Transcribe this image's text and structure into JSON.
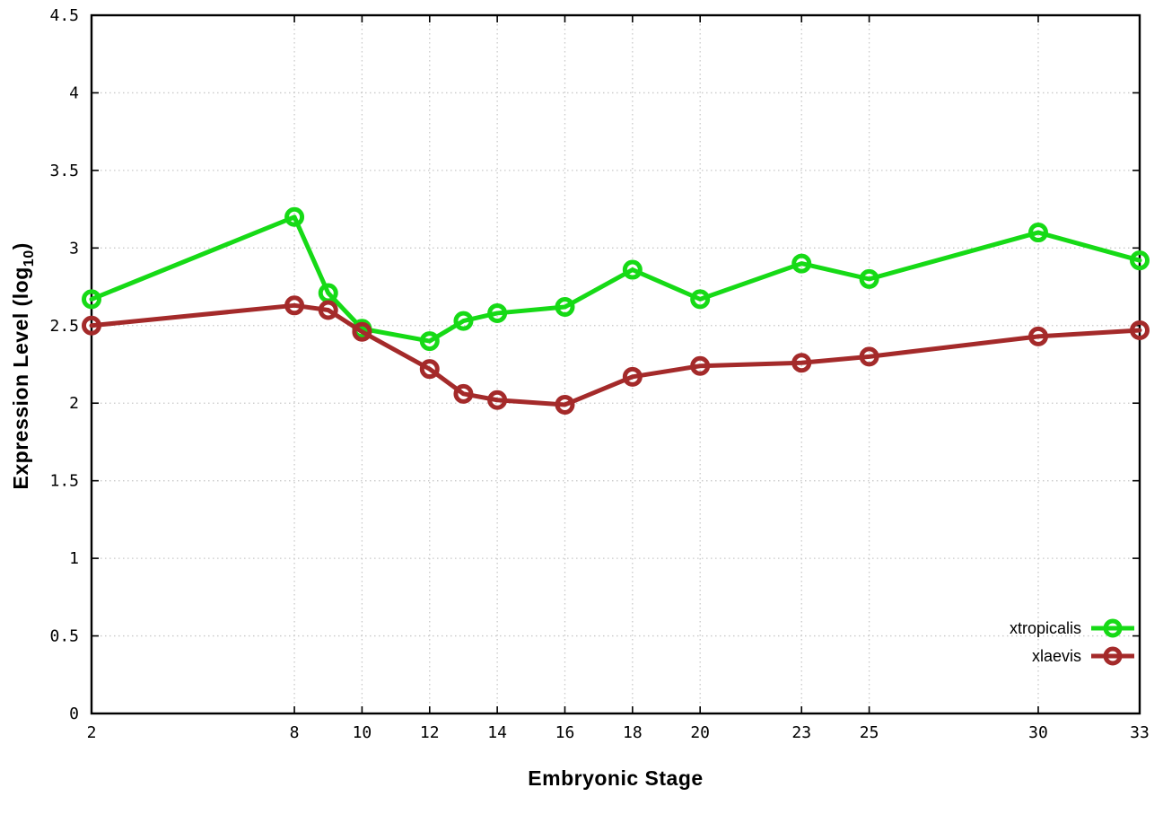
{
  "chart_data": {
    "type": "line",
    "title": "",
    "xlabel": "Embryonic Stage",
    "ylabel": "Expression Level (log10)",
    "ylabel_parts": {
      "main": "Expression Level (log",
      "sub": "10",
      "close": ")"
    },
    "x": [
      2,
      8,
      9,
      10,
      12,
      13,
      14,
      16,
      18,
      20,
      23,
      25,
      30,
      33
    ],
    "series": [
      {
        "name": "xtropicalis",
        "color": "#16da16",
        "values": [
          2.67,
          3.2,
          2.71,
          2.48,
          2.4,
          2.53,
          2.58,
          2.62,
          2.86,
          2.67,
          2.9,
          2.8,
          3.1,
          2.92
        ]
      },
      {
        "name": "xlaevis",
        "color": "#a42a2a",
        "values": [
          2.5,
          2.63,
          2.6,
          2.46,
          2.22,
          2.06,
          2.02,
          1.99,
          2.17,
          2.24,
          2.26,
          2.3,
          2.43,
          2.47
        ]
      }
    ],
    "x_ticks": [
      2,
      8,
      10,
      12,
      14,
      16,
      18,
      20,
      23,
      25,
      30,
      33
    ],
    "y_ticks": [
      0,
      0.5,
      1,
      1.5,
      2,
      2.5,
      3,
      3.5,
      4,
      4.5
    ],
    "xlim": [
      2,
      33
    ],
    "ylim": [
      0,
      4.5
    ],
    "grid": true,
    "legend_position": "bottom-right-inside",
    "marker": "open-circle",
    "colors": {
      "border": "#000000",
      "grid": "#c8c8c8",
      "text": "#000000"
    }
  }
}
